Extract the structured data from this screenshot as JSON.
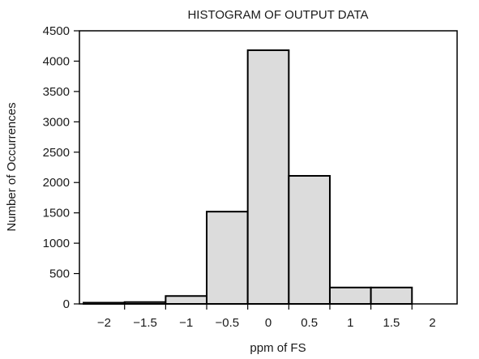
{
  "chart_data": {
    "type": "bar",
    "title": "HISTOGRAM OF OUTPUT DATA",
    "xlabel": "ppm of FS",
    "ylabel": "Number of Occurrences",
    "x_tick_labels": [
      "−2",
      "−1.5",
      "−1",
      "−0.5",
      "0",
      "0.5",
      "1",
      "1.5",
      "2"
    ],
    "x_ticks": [
      -2,
      -1.5,
      -1,
      -0.5,
      0,
      0.5,
      1,
      1.5,
      2
    ],
    "y_ticks": [
      0,
      500,
      1000,
      1500,
      2000,
      2500,
      3000,
      3500,
      4000,
      4500
    ],
    "ylim": [
      0,
      4500
    ],
    "bins": [
      {
        "center": -2.0,
        "value": 20
      },
      {
        "center": -1.5,
        "value": 30
      },
      {
        "center": -1.0,
        "value": 130
      },
      {
        "center": -0.5,
        "value": 1520
      },
      {
        "center": 0.0,
        "value": 4180
      },
      {
        "center": 0.5,
        "value": 2110
      },
      {
        "center": 1.0,
        "value": 270
      },
      {
        "center": 1.5,
        "value": 270
      }
    ],
    "grid": false,
    "colors": {
      "bar_fill": "#dcdcdc",
      "bar_stroke": "#000000"
    }
  }
}
